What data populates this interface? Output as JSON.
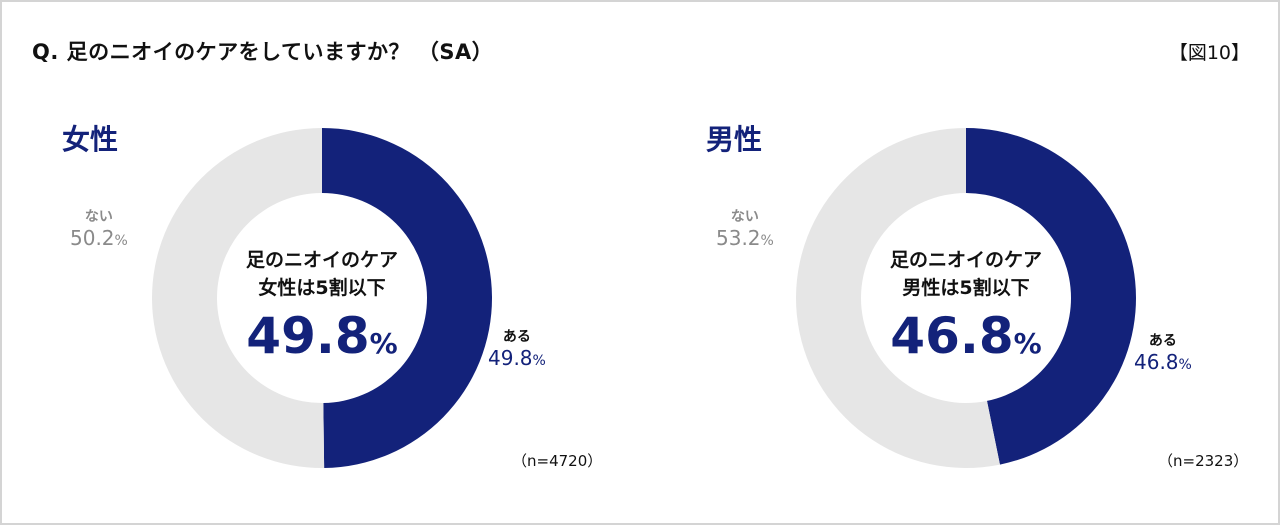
{
  "header": {
    "title": "Q. 足のニオイのケアをしていますか？ （SA）",
    "figure_label": "【図10】"
  },
  "colors": {
    "yes": "#13227a",
    "no": "#e6e6e6",
    "no_label": "#8a8a8a"
  },
  "panels": [
    {
      "title": "女性",
      "center_line1": "足のニオイのケア",
      "center_line2": "女性は5割以下",
      "center_value": "49.8",
      "center_unit": "%",
      "yes_label": "ある",
      "yes_value": "49.8",
      "no_label": "ない",
      "no_value": "50.2",
      "unit": "%",
      "n": "（n=4720）"
    },
    {
      "title": "男性",
      "center_line1": "足のニオイのケア",
      "center_line2": "男性は5割以下",
      "center_value": "46.8",
      "center_unit": "%",
      "yes_label": "ある",
      "yes_value": "46.8",
      "no_label": "ない",
      "no_value": "53.2",
      "unit": "%",
      "n": "（n=2323）"
    }
  ],
  "chart_data": [
    {
      "type": "pie",
      "variant": "donut",
      "title": "女性",
      "question": "Q. 足のニオイのケアをしていますか？ （SA）",
      "categories": [
        "ある",
        "ない"
      ],
      "values": [
        49.8,
        50.2
      ],
      "unit": "%",
      "n": 4720,
      "colors": [
        "#13227a",
        "#e6e6e6"
      ],
      "center_annotation": "足のニオイのケア 女性は5割以下 49.8%"
    },
    {
      "type": "pie",
      "variant": "donut",
      "title": "男性",
      "question": "Q. 足のニオイのケアをしていますか？ （SA）",
      "categories": [
        "ある",
        "ない"
      ],
      "values": [
        46.8,
        53.2
      ],
      "unit": "%",
      "n": 2323,
      "colors": [
        "#13227a",
        "#e6e6e6"
      ],
      "center_annotation": "足のニオイのケア 男性は5割以下 46.8%"
    }
  ]
}
